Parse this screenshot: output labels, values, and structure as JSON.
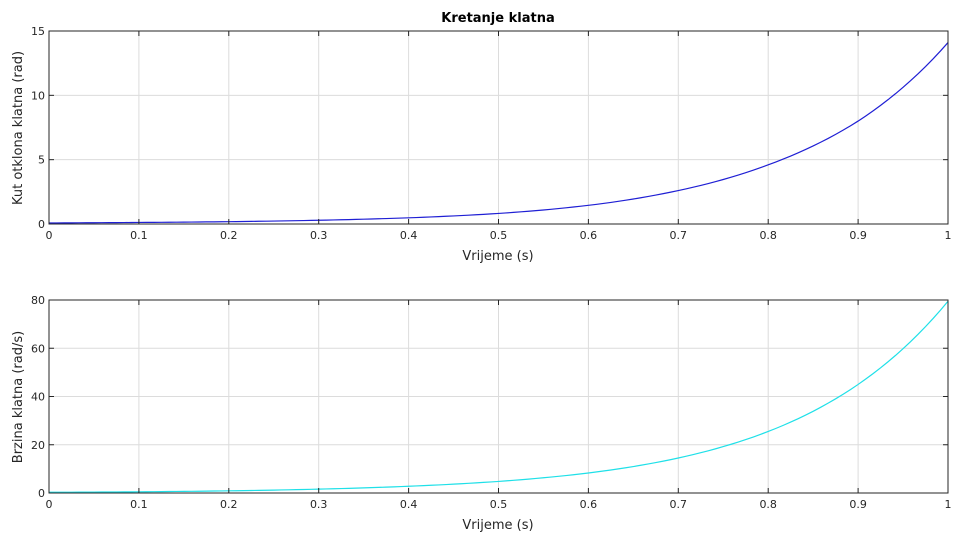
{
  "chart_data": [
    {
      "type": "line",
      "title": "Kretanje klatna",
      "xlabel": "Vrijeme (s)",
      "ylabel": "Kut otklona klatna (rad)",
      "xlim": [
        0,
        1
      ],
      "ylim": [
        0,
        15
      ],
      "xticks": [
        "0",
        "0.1",
        "0.2",
        "0.3",
        "0.4",
        "0.5",
        "0.6",
        "0.7",
        "0.8",
        "0.9",
        "1"
      ],
      "yticks": [
        "0",
        "5",
        "10",
        "15"
      ],
      "grid": true,
      "color": "#1f1fd4",
      "series": [
        {
          "x": [
            0,
            0.1,
            0.2,
            0.3,
            0.4,
            0.5,
            0.6,
            0.7,
            0.8,
            0.9,
            1.0
          ],
          "values": [
            0.08,
            0.12,
            0.18,
            0.29,
            0.48,
            0.82,
            1.45,
            2.6,
            4.6,
            8.0,
            14.1
          ]
        }
      ]
    },
    {
      "type": "line",
      "title": "",
      "xlabel": "Vrijeme (s)",
      "ylabel": "Brzina klatna (rad/s)",
      "xlim": [
        0,
        1
      ],
      "ylim": [
        0,
        80
      ],
      "xticks": [
        "0",
        "0.1",
        "0.2",
        "0.3",
        "0.4",
        "0.5",
        "0.6",
        "0.7",
        "0.8",
        "0.9",
        "1"
      ],
      "yticks": [
        "0",
        "20",
        "40",
        "60",
        "80"
      ],
      "grid": true,
      "color": "#1fe0e8",
      "series": [
        {
          "x": [
            0,
            0.1,
            0.2,
            0.3,
            0.4,
            0.5,
            0.6,
            0.7,
            0.8,
            0.9,
            1.0
          ],
          "values": [
            0.3,
            0.5,
            0.9,
            1.6,
            2.8,
            4.8,
            8.3,
            14.5,
            25.5,
            45.0,
            79.5
          ]
        }
      ]
    }
  ]
}
